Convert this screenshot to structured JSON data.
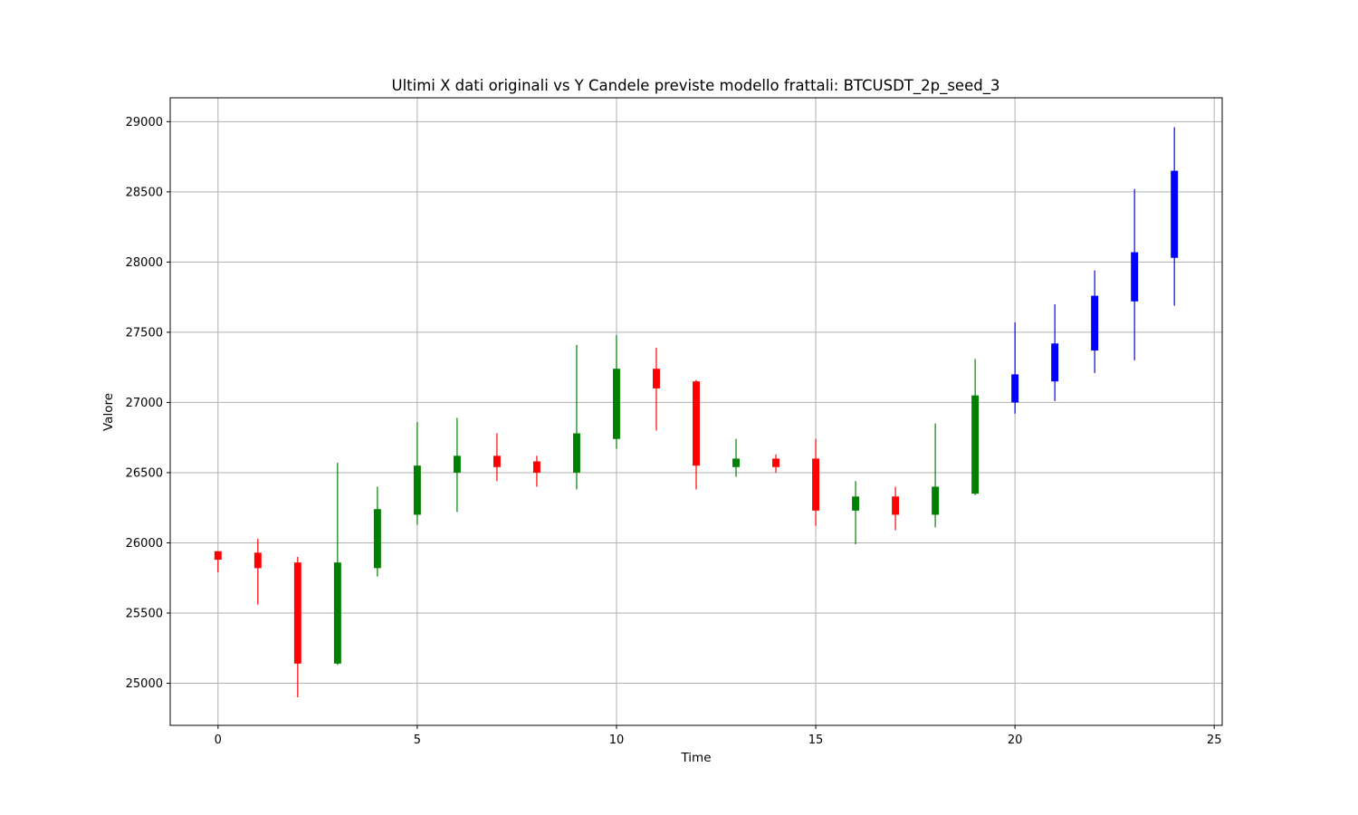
{
  "chart_data": {
    "type": "candlestick",
    "title": "Ultimi X dati originali vs Y Candele previste modello frattali: BTCUSDT_2p_seed_3",
    "xlabel": "Time",
    "ylabel": "Valore",
    "xlim": [
      -1.2,
      25.2
    ],
    "ylim": [
      24700,
      29170
    ],
    "xticks": [
      0,
      5,
      10,
      15,
      20,
      25
    ],
    "xtick_labels": [
      "0",
      "5",
      "10",
      "15",
      "20",
      "25"
    ],
    "yticks": [
      25000,
      25500,
      26000,
      26500,
      27000,
      27500,
      28000,
      28500,
      29000
    ],
    "ytick_labels": [
      "25000",
      "25500",
      "26000",
      "26500",
      "27000",
      "27500",
      "28000",
      "28500",
      "29000"
    ],
    "grid": true,
    "colors": {
      "up": "#008000",
      "down": "#ff0000",
      "predicted": "#0000ff",
      "grid": "#b0b0b0",
      "axes": "#000000"
    },
    "candles": [
      {
        "t": 0,
        "open": 25940,
        "high": 25940,
        "low": 25790,
        "close": 25880,
        "group": "original"
      },
      {
        "t": 1,
        "open": 25930,
        "high": 26030,
        "low": 25560,
        "close": 25820,
        "group": "original"
      },
      {
        "t": 2,
        "open": 25860,
        "high": 25900,
        "low": 24900,
        "close": 25140,
        "group": "original"
      },
      {
        "t": 3,
        "open": 25140,
        "high": 26570,
        "low": 25130,
        "close": 25860,
        "group": "original"
      },
      {
        "t": 4,
        "open": 25820,
        "high": 26400,
        "low": 25760,
        "close": 26240,
        "group": "original"
      },
      {
        "t": 5,
        "open": 26200,
        "high": 26860,
        "low": 26130,
        "close": 26550,
        "group": "original"
      },
      {
        "t": 6,
        "open": 26500,
        "high": 26890,
        "low": 26220,
        "close": 26620,
        "group": "original"
      },
      {
        "t": 7,
        "open": 26620,
        "high": 26780,
        "low": 26440,
        "close": 26540,
        "group": "original"
      },
      {
        "t": 8,
        "open": 26580,
        "high": 26620,
        "low": 26400,
        "close": 26500,
        "group": "original"
      },
      {
        "t": 9,
        "open": 26500,
        "high": 27410,
        "low": 26380,
        "close": 26780,
        "group": "original"
      },
      {
        "t": 10,
        "open": 26740,
        "high": 27480,
        "low": 26670,
        "close": 27240,
        "group": "original"
      },
      {
        "t": 11,
        "open": 27240,
        "high": 27390,
        "low": 26800,
        "close": 27100,
        "group": "original"
      },
      {
        "t": 12,
        "open": 27150,
        "high": 27160,
        "low": 26380,
        "close": 26550,
        "group": "original"
      },
      {
        "t": 13,
        "open": 26540,
        "high": 26740,
        "low": 26470,
        "close": 26600,
        "group": "original"
      },
      {
        "t": 14,
        "open": 26600,
        "high": 26630,
        "low": 26500,
        "close": 26540,
        "group": "original"
      },
      {
        "t": 15,
        "open": 26600,
        "high": 26740,
        "low": 26120,
        "close": 26230,
        "group": "original"
      },
      {
        "t": 16,
        "open": 26230,
        "high": 26440,
        "low": 25990,
        "close": 26330,
        "group": "original"
      },
      {
        "t": 17,
        "open": 26330,
        "high": 26400,
        "low": 26090,
        "close": 26200,
        "group": "original"
      },
      {
        "t": 18,
        "open": 26200,
        "high": 26850,
        "low": 26110,
        "close": 26400,
        "group": "original"
      },
      {
        "t": 19,
        "open": 26350,
        "high": 27310,
        "low": 26340,
        "close": 27050,
        "group": "original"
      },
      {
        "t": 20,
        "open": 27000,
        "high": 27570,
        "low": 26920,
        "close": 27200,
        "group": "predicted"
      },
      {
        "t": 21,
        "open": 27150,
        "high": 27700,
        "low": 27010,
        "close": 27420,
        "group": "predicted"
      },
      {
        "t": 22,
        "open": 27370,
        "high": 27940,
        "low": 27210,
        "close": 27760,
        "group": "predicted"
      },
      {
        "t": 23,
        "open": 27720,
        "high": 28520,
        "low": 27300,
        "close": 28070,
        "group": "predicted"
      },
      {
        "t": 24,
        "open": 28030,
        "high": 28960,
        "low": 27690,
        "close": 28650,
        "group": "predicted"
      }
    ]
  }
}
